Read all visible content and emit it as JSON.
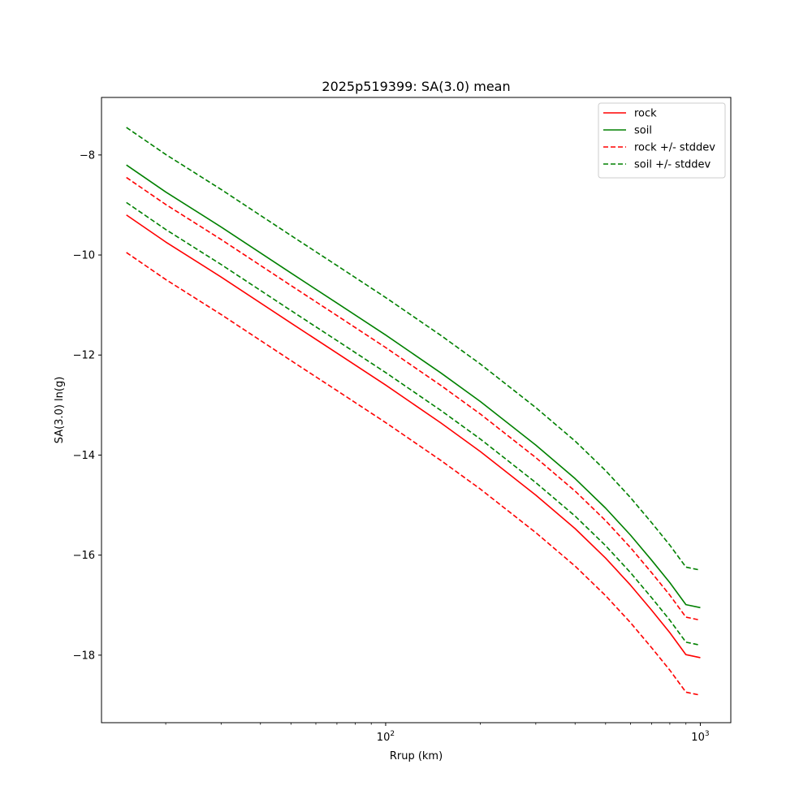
{
  "chart_data": {
    "type": "line",
    "title": "2025p519399: SA(3.0) mean",
    "xlabel": "Rrup (km)",
    "ylabel": "SA(3.0) ln(g)",
    "xscale": "log",
    "xlim": [
      12.5,
      1250
    ],
    "ylim": [
      -19.35,
      -6.85
    ],
    "x": [
      15,
      20,
      30,
      50,
      70,
      100,
      150,
      200,
      300,
      400,
      500,
      600,
      700,
      800,
      900,
      1000
    ],
    "xticks": [
      {
        "value": 100,
        "base": "10",
        "exp": "2"
      },
      {
        "value": 1000,
        "base": "10",
        "exp": "3"
      }
    ],
    "yticks": [
      {
        "value": -8,
        "label": "−8"
      },
      {
        "value": -10,
        "label": "−10"
      },
      {
        "value": -12,
        "label": "−12"
      },
      {
        "value": -14,
        "label": "−14"
      },
      {
        "value": -16,
        "label": "−16"
      },
      {
        "value": -18,
        "label": "−18"
      }
    ],
    "grid": false,
    "legend_position": "top-right",
    "series": [
      {
        "name": "rock",
        "color": "#ff0000",
        "dash": "solid",
        "values": [
          -9.2,
          -9.74,
          -10.44,
          -11.36,
          -11.96,
          -12.6,
          -13.36,
          -13.93,
          -14.8,
          -15.47,
          -16.06,
          -16.6,
          -17.1,
          -17.55,
          -17.99,
          -18.05
        ]
      },
      {
        "name": "soil",
        "color": "#008000",
        "dash": "solid",
        "values": [
          -8.2,
          -8.74,
          -9.44,
          -10.36,
          -10.96,
          -11.6,
          -12.36,
          -12.93,
          -13.8,
          -14.47,
          -15.06,
          -15.6,
          -16.1,
          -16.55,
          -16.99,
          -17.05
        ]
      },
      {
        "name": "rock +/- stddev",
        "color": "#ff0000",
        "dash": "dashed",
        "values": [
          -8.45,
          -8.99,
          -9.69,
          -10.61,
          -11.21,
          -11.85,
          -12.61,
          -13.18,
          -14.05,
          -14.72,
          -15.31,
          -15.85,
          -16.35,
          -16.8,
          -17.24,
          -17.3
        ]
      },
      {
        "name": "",
        "color": "#ff0000",
        "dash": "dashed",
        "values": [
          -9.95,
          -10.49,
          -11.19,
          -12.11,
          -12.71,
          -13.35,
          -14.11,
          -14.68,
          -15.55,
          -16.22,
          -16.81,
          -17.35,
          -17.85,
          -18.3,
          -18.74,
          -18.8
        ]
      },
      {
        "name": "soil +/- stddev",
        "color": "#008000",
        "dash": "dashed",
        "values": [
          -7.45,
          -7.99,
          -8.69,
          -9.61,
          -10.21,
          -10.85,
          -11.61,
          -12.18,
          -13.05,
          -13.72,
          -14.31,
          -14.85,
          -15.35,
          -15.8,
          -16.24,
          -16.3
        ]
      },
      {
        "name": "",
        "color": "#008000",
        "dash": "dashed",
        "values": [
          -8.95,
          -9.49,
          -10.19,
          -11.11,
          -11.71,
          -12.35,
          -13.11,
          -13.68,
          -14.55,
          -15.22,
          -15.81,
          -16.35,
          -16.85,
          -17.3,
          -17.74,
          -17.8
        ]
      }
    ]
  }
}
